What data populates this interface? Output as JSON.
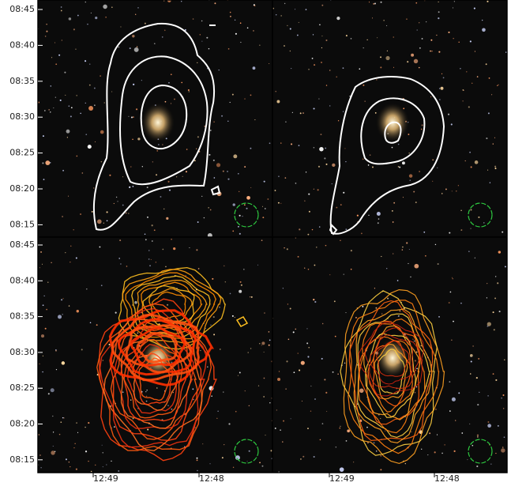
{
  "y_axis_labels": {
    "top": [
      "08:45",
      "08:40",
      "08:35",
      "08:30",
      "08:25",
      "08:20",
      "08:15"
    ],
    "bottom": [
      "08:45",
      "08:40",
      "08:35",
      "08:30",
      "08:25",
      "08:20",
      "08:15"
    ]
  },
  "x_axis_labels": {
    "left": [
      "12:49",
      "12:48"
    ],
    "right": [
      "12:49",
      "12:48"
    ]
  }
}
